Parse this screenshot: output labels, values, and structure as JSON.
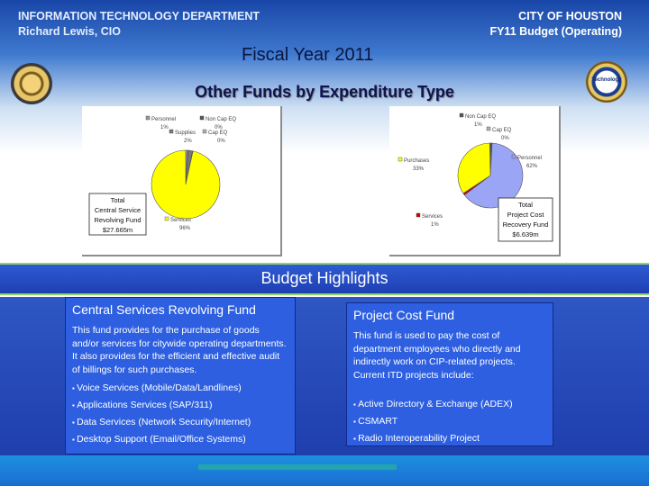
{
  "header": {
    "dept": "INFORMATION TECHNOLOGY DEPARTMENT",
    "cio": "Richard Lewis, CIO",
    "city": "CITY OF HOUSTON",
    "budget": "FY11 Budget (Operating)"
  },
  "fiscal_year": "Fiscal Year 2011",
  "section_title": "Other Funds by Expenditure Type",
  "seal_right_text": "Technology",
  "chart_data": [
    {
      "type": "pie",
      "series": [
        {
          "label": "Personnel",
          "value": 1
        },
        {
          "label": "Non Cap EQ",
          "value": 0
        },
        {
          "label": "Supplies",
          "value": 2
        },
        {
          "label": "Cap EQ",
          "value": 0
        },
        {
          "label": "Services",
          "value": 96
        }
      ],
      "display_labels": [
        "Personnel\n1%",
        "Non Cap EQ\n0%",
        "Supplies\n2%",
        "Cap EQ\n0%",
        "Services\n96%"
      ],
      "colors": [
        "#9a9a9a",
        "#555555",
        "#7a7a7a",
        "#b0b0b0",
        "#ffff00"
      ],
      "total_label": [
        "Total",
        "Central Service",
        "Revolving Fund",
        "$27.665m"
      ]
    },
    {
      "type": "pie",
      "series": [
        {
          "label": "Non Cap EQ",
          "value": 1
        },
        {
          "label": "Cap EQ",
          "value": 0
        },
        {
          "label": "Personnel",
          "value": 62
        },
        {
          "label": "Services",
          "value": 1
        },
        {
          "label": "Purchases",
          "value": 33
        }
      ],
      "display_labels": [
        "Non Cap EQ\n1%",
        "Cap EQ\n0%",
        "Personnel\n62%",
        "Services\n1%",
        "Purchases\n33%"
      ],
      "colors": [
        "#555555",
        "#b0b0b0",
        "#9aa6f5",
        "#cc0000",
        "#ffff00"
      ],
      "total_label": [
        "Total",
        "Project Cost",
        "Recovery Fund",
        "$6.639m"
      ]
    }
  ],
  "highlights": {
    "title": "Budget Highlights",
    "left": {
      "title": "Central Services Revolving Fund",
      "body": "This fund provides for the purchase of goods and/or services for citywide operating departments. It also provides for the efficient and effective audit of billings for such purchases.",
      "items": [
        "Voice Services (Mobile/Data/Landlines)",
        "Applications Services (SAP/311)",
        "Data Services (Network Security/Internet)",
        "Desktop Support (Email/Office Systems)"
      ]
    },
    "right": {
      "title": "Project Cost Fund",
      "body": "This fund is used to pay the cost of department employees who directly and indirectly work on CIP-related projects. Current ITD projects include:",
      "items": [
        "Active Directory & Exchange (ADEX)",
        "CSMART",
        "Radio Interoperability Project"
      ]
    }
  }
}
